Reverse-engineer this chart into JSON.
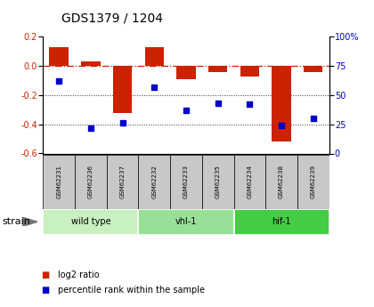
{
  "title": "GDS1379 / 1204",
  "samples": [
    "GSM62231",
    "GSM62236",
    "GSM62237",
    "GSM62232",
    "GSM62233",
    "GSM62235",
    "GSM62234",
    "GSM62238",
    "GSM62239"
  ],
  "log2_ratio": [
    0.13,
    0.03,
    -0.32,
    0.13,
    -0.09,
    -0.04,
    -0.07,
    -0.52,
    -0.04
  ],
  "percentile_rank": [
    62,
    22,
    26,
    57,
    37,
    43,
    42,
    24,
    30
  ],
  "groups": [
    {
      "label": "wild type",
      "indices": [
        0,
        1,
        2
      ]
    },
    {
      "label": "vhl-1",
      "indices": [
        3,
        4,
        5
      ]
    },
    {
      "label": "hif-1",
      "indices": [
        6,
        7,
        8
      ]
    }
  ],
  "ylim_left": [
    -0.6,
    0.2
  ],
  "ylim_right": [
    0,
    100
  ],
  "yticks_left": [
    -0.6,
    -0.4,
    -0.2,
    0.0,
    0.2
  ],
  "yticks_right": [
    0,
    25,
    50,
    75,
    100
  ],
  "bar_color": "#cc2200",
  "dot_color": "#0000cc",
  "hline_color": "#cc2200",
  "dotted_line_color": "#333333",
  "group_colors": [
    "#c8f0c0",
    "#98e098",
    "#44cc44"
  ],
  "sample_bg": "#c8c8c8",
  "strain_label": "strain",
  "legend_bar": "log2 ratio",
  "legend_dot": "percentile rank within the sample",
  "title_fontsize": 10,
  "tick_fontsize": 7,
  "sample_fontsize": 5,
  "group_fontsize": 7,
  "legend_fontsize": 7
}
